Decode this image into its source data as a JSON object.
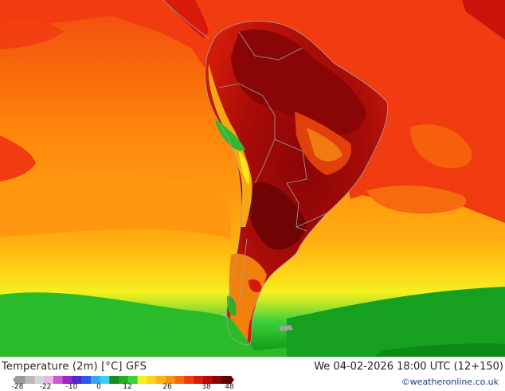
{
  "title": "Temperature (2m) [°C] GFS",
  "valid_time": "We 04-02-2026 18:00 UTC (12+150)",
  "credit": "©weatheronline.co.uk",
  "legend": {
    "ticks": [
      "-28",
      "-22",
      "-10",
      "0",
      "12",
      "26",
      "38",
      "48"
    ],
    "colors": [
      "#9a9a9a",
      "#b9b9b9",
      "#d6d6d6",
      "#e6b8e8",
      "#c85ad6",
      "#9a28c0",
      "#4b2ad0",
      "#2a5ae6",
      "#3aa6ec",
      "#38d2f0",
      "#1c8a1c",
      "#22b022",
      "#3cd23c",
      "#f5f020",
      "#fcd21a",
      "#fbb416",
      "#f99010",
      "#f66a10",
      "#f03c10",
      "#dc1a0a",
      "#b80a08",
      "#8c0606",
      "#5e0404"
    ]
  },
  "map": {
    "colors": {
      "ocean_warm": "#ff8c0c",
      "ocean_hot": "#f6600c",
      "red": "#f03a10",
      "land_dark": "#9a0a08",
      "land_darkest": "#7a0606",
      "green": "#30c030",
      "yellow": "#ffe41a",
      "gray_border": "#a0a0a0"
    }
  }
}
